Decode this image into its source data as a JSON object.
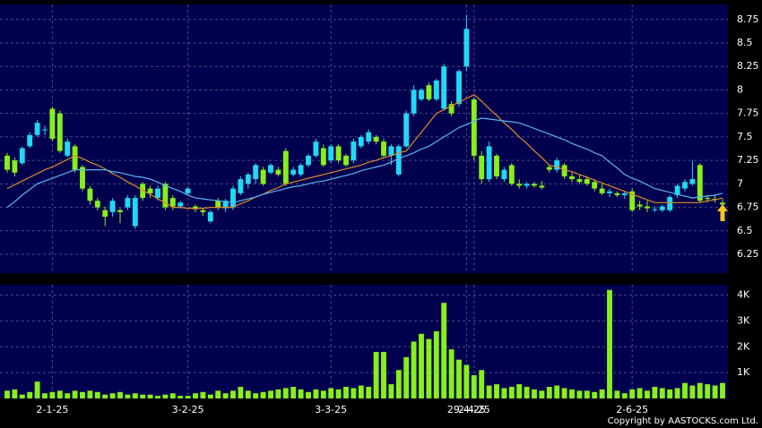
{
  "chart_data": {
    "type": "candlestick",
    "categories": [
      null,
      null,
      null,
      null,
      null,
      null,
      "2-1-25",
      null,
      null,
      null,
      null,
      null,
      null,
      null,
      null,
      null,
      null,
      null,
      null,
      null,
      null,
      null,
      null,
      null,
      "3-2-25",
      null,
      null,
      null,
      null,
      null,
      null,
      null,
      null,
      null,
      null,
      null,
      null,
      null,
      null,
      null,
      null,
      null,
      null,
      "3-3-25",
      null,
      null,
      null,
      null,
      null,
      null,
      null,
      null,
      null,
      null,
      null,
      null,
      null,
      null,
      null,
      null,
      null,
      "29-4-25",
      "2-4-25",
      null,
      null,
      null,
      null,
      null,
      null,
      null,
      null,
      null,
      null,
      null,
      null,
      null,
      null,
      null,
      null,
      null,
      null,
      null,
      null,
      "2-6-25",
      null,
      null,
      null,
      null,
      null,
      null,
      null,
      null,
      null,
      null,
      null,
      null
    ],
    "open": [
      7.3,
      7.25,
      7.22,
      7.4,
      7.52,
      7.58,
      7.8,
      7.75,
      7.3,
      7.4,
      7.18,
      6.95,
      6.82,
      6.72,
      6.7,
      6.72,
      6.75,
      6.55,
      7.0,
      6.95,
      6.85,
      7.0,
      6.85,
      6.76,
      6.9,
      6.76,
      6.72,
      6.6,
      6.82,
      6.74,
      6.75,
      6.9,
      7.0,
      7.05,
      7.15,
      7.12,
      7.15,
      7.35,
      7.1,
      7.1,
      7.2,
      7.3,
      7.38,
      7.25,
      7.4,
      7.3,
      7.25,
      7.4,
      7.45,
      7.5,
      7.45,
      7.3,
      7.1,
      7.4,
      7.75,
      7.9,
      8.05,
      7.9,
      7.8,
      7.85,
      7.85,
      8.25,
      7.9,
      7.3,
      7.05,
      7.3,
      7.05,
      7.2,
      7.0,
      6.98,
      7.0,
      6.98,
      7.18,
      7.15,
      7.2,
      7.08,
      7.05,
      7.05,
      7.02,
      6.95,
      6.9,
      6.9,
      6.88,
      6.92,
      6.78,
      6.76,
      6.72,
      6.72,
      6.72,
      6.88,
      6.95,
      7.0,
      7.2,
      6.85,
      6.84,
      6.8
    ],
    "high": [
      7.33,
      7.28,
      7.4,
      7.55,
      7.68,
      7.62,
      7.82,
      7.78,
      7.48,
      7.42,
      7.2,
      6.98,
      6.85,
      6.76,
      6.85,
      6.74,
      6.88,
      6.88,
      7.02,
      6.98,
      6.98,
      7.02,
      6.88,
      6.82,
      6.97,
      6.78,
      6.74,
      6.72,
      6.85,
      6.84,
      6.98,
      7.08,
      7.12,
      7.22,
      7.18,
      7.22,
      7.18,
      7.38,
      7.18,
      7.22,
      7.32,
      7.48,
      7.42,
      7.42,
      7.42,
      7.32,
      7.48,
      7.52,
      7.58,
      7.52,
      7.48,
      7.42,
      7.42,
      7.78,
      8.05,
      8.02,
      8.08,
      8.12,
      8.28,
      7.88,
      8.22,
      8.8,
      7.92,
      7.35,
      7.45,
      7.32,
      7.18,
      7.22,
      7.05,
      7.02,
      7.02,
      7.03,
      7.2,
      7.28,
      7.22,
      7.12,
      7.1,
      7.08,
      7.05,
      7.0,
      6.95,
      6.92,
      6.92,
      6.95,
      6.82,
      6.82,
      6.76,
      6.78,
      6.88,
      7.0,
      7.05,
      7.25,
      7.22,
      6.88,
      6.88,
      6.84
    ],
    "low": [
      7.12,
      7.08,
      7.2,
      7.38,
      7.5,
      7.52,
      7.45,
      7.33,
      7.28,
      7.12,
      6.92,
      6.78,
      6.72,
      6.55,
      6.65,
      6.58,
      6.72,
      6.52,
      6.82,
      6.85,
      6.82,
      6.72,
      6.72,
      6.74,
      6.88,
      6.7,
      6.66,
      6.58,
      6.72,
      6.7,
      6.72,
      6.88,
      6.95,
      7.0,
      6.98,
      7.1,
      7.08,
      6.98,
      7.08,
      7.08,
      7.18,
      7.28,
      7.18,
      7.22,
      7.22,
      7.18,
      7.22,
      7.38,
      7.42,
      7.42,
      7.28,
      7.2,
      7.08,
      7.38,
      7.72,
      7.88,
      7.88,
      7.88,
      7.78,
      7.72,
      7.82,
      8.2,
      7.25,
      7.0,
      7.02,
      7.05,
      7.02,
      6.98,
      6.95,
      6.95,
      6.96,
      6.94,
      7.12,
      7.12,
      7.05,
      7.02,
      7.0,
      6.98,
      6.92,
      6.88,
      6.86,
      6.86,
      6.84,
      6.7,
      6.72,
      6.7,
      6.7,
      6.7,
      6.7,
      6.85,
      6.92,
      6.98,
      6.8,
      6.8,
      6.8,
      6.76
    ],
    "close": [
      7.15,
      7.12,
      7.38,
      7.52,
      7.65,
      7.58,
      7.48,
      7.35,
      7.45,
      7.15,
      6.95,
      6.82,
      6.75,
      6.65,
      6.82,
      6.7,
      6.85,
      6.85,
      6.85,
      6.9,
      6.95,
      6.75,
      6.76,
      6.8,
      6.95,
      6.73,
      6.7,
      6.7,
      6.75,
      6.82,
      6.95,
      7.05,
      7.1,
      7.2,
      7.0,
      7.2,
      7.1,
      7.0,
      7.15,
      7.2,
      7.3,
      7.45,
      7.2,
      7.4,
      7.25,
      7.2,
      7.45,
      7.5,
      7.55,
      7.45,
      7.3,
      7.4,
      7.4,
      7.75,
      8.0,
      8.0,
      7.9,
      8.1,
      8.25,
      7.75,
      8.2,
      8.65,
      7.3,
      7.05,
      7.4,
      7.08,
      7.15,
      7.0,
      6.98,
      7.0,
      6.98,
      6.96,
      7.15,
      7.25,
      7.08,
      7.05,
      7.02,
      7.0,
      6.95,
      6.9,
      6.92,
      6.88,
      6.9,
      6.72,
      6.76,
      6.74,
      6.73,
      6.76,
      6.86,
      6.98,
      7.02,
      7.05,
      6.82,
      6.84,
      6.83,
      6.78
    ],
    "up_color": "#22d8f5",
    "down_color": "#86f01a",
    "ma_lines": [
      {
        "color": "#e08a2a",
        "values": [
          6.95,
          6.99,
          7.03,
          7.07,
          7.11,
          7.15,
          7.18,
          7.22,
          7.26,
          7.3,
          7.27,
          7.23,
          7.2,
          7.16,
          7.11,
          7.07,
          7.02,
          6.98,
          6.93,
          6.89,
          6.84,
          6.8,
          6.75,
          6.75,
          6.74,
          6.74,
          6.74,
          6.75,
          6.75,
          6.75,
          6.75,
          6.79,
          6.82,
          6.86,
          6.89,
          6.93,
          6.96,
          7.0,
          7.02,
          7.04,
          7.06,
          7.08,
          7.1,
          7.12,
          7.14,
          7.16,
          7.18,
          7.2,
          7.23,
          7.25,
          7.28,
          7.3,
          7.33,
          7.35,
          7.45,
          7.55,
          7.65,
          7.75,
          7.79,
          7.83,
          7.87,
          7.91,
          7.95,
          7.88,
          7.8,
          7.73,
          7.65,
          7.58,
          7.5,
          7.43,
          7.35,
          7.28,
          7.2,
          7.18,
          7.15,
          7.13,
          7.1,
          7.07,
          7.04,
          7.01,
          6.98,
          6.95,
          6.92,
          6.89,
          6.86,
          6.83,
          6.8,
          6.8,
          6.8,
          6.8,
          6.8,
          6.8,
          6.8,
          6.82,
          6.83,
          6.85
        ]
      },
      {
        "color": "#5ab4f0",
        "values": [
          6.75,
          6.81,
          6.88,
          6.94,
          7.0,
          7.03,
          7.06,
          7.09,
          7.12,
          7.15,
          7.15,
          7.15,
          7.15,
          7.15,
          7.13,
          7.12,
          7.1,
          7.08,
          7.07,
          7.05,
          7.02,
          6.98,
          6.95,
          6.92,
          6.88,
          6.85,
          6.84,
          6.83,
          6.82,
          6.81,
          6.8,
          6.82,
          6.84,
          6.86,
          6.89,
          6.91,
          6.93,
          6.95,
          6.97,
          6.98,
          7.0,
          7.02,
          7.03,
          7.05,
          7.07,
          7.09,
          7.11,
          7.14,
          7.16,
          7.18,
          7.2,
          7.23,
          7.27,
          7.3,
          7.33,
          7.37,
          7.4,
          7.45,
          7.5,
          7.55,
          7.6,
          7.63,
          7.67,
          7.7,
          7.69,
          7.68,
          7.67,
          7.66,
          7.65,
          7.62,
          7.59,
          7.56,
          7.53,
          7.5,
          7.47,
          7.43,
          7.4,
          7.37,
          7.33,
          7.3,
          7.23,
          7.17,
          7.1,
          7.06,
          7.03,
          6.99,
          6.95,
          6.93,
          6.91,
          6.89,
          6.87,
          6.85,
          6.86,
          6.87,
          6.88,
          6.9
        ]
      }
    ],
    "ylim": [
      6.05,
      8.91
    ],
    "yticks": [
      6.25,
      6.5,
      6.75,
      7,
      7.25,
      7.5,
      7.75,
      8,
      8.25,
      8.5,
      8.75
    ],
    "grid": true,
    "volume": {
      "color": "#86f01a",
      "ylim": [
        0,
        4400
      ],
      "yticks": [
        {
          "value": 1000,
          "label": "1K"
        },
        {
          "value": 2000,
          "label": "2K"
        },
        {
          "value": 3000,
          "label": "3K"
        },
        {
          "value": 4000,
          "label": "4K"
        }
      ],
      "values": [
        300,
        350,
        150,
        250,
        650,
        200,
        250,
        300,
        200,
        300,
        250,
        300,
        250,
        150,
        200,
        250,
        150,
        200,
        150,
        150,
        100,
        150,
        200,
        100,
        100,
        200,
        250,
        150,
        300,
        200,
        300,
        450,
        300,
        200,
        250,
        300,
        350,
        400,
        450,
        350,
        250,
        350,
        300,
        400,
        350,
        450,
        400,
        500,
        450,
        1800,
        1800,
        550,
        1100,
        1600,
        2200,
        2500,
        2300,
        2600,
        3700,
        1900,
        1500,
        1300,
        900,
        1100,
        500,
        550,
        400,
        450,
        550,
        450,
        350,
        300,
        450,
        500,
        400,
        350,
        300,
        300,
        250,
        350,
        4200,
        300,
        200,
        350,
        400,
        300,
        450,
        400,
        350,
        400,
        600,
        500,
        600,
        550,
        500,
        600
      ]
    },
    "copyright": "Copyright by AASTOCKS.com Ltd."
  }
}
